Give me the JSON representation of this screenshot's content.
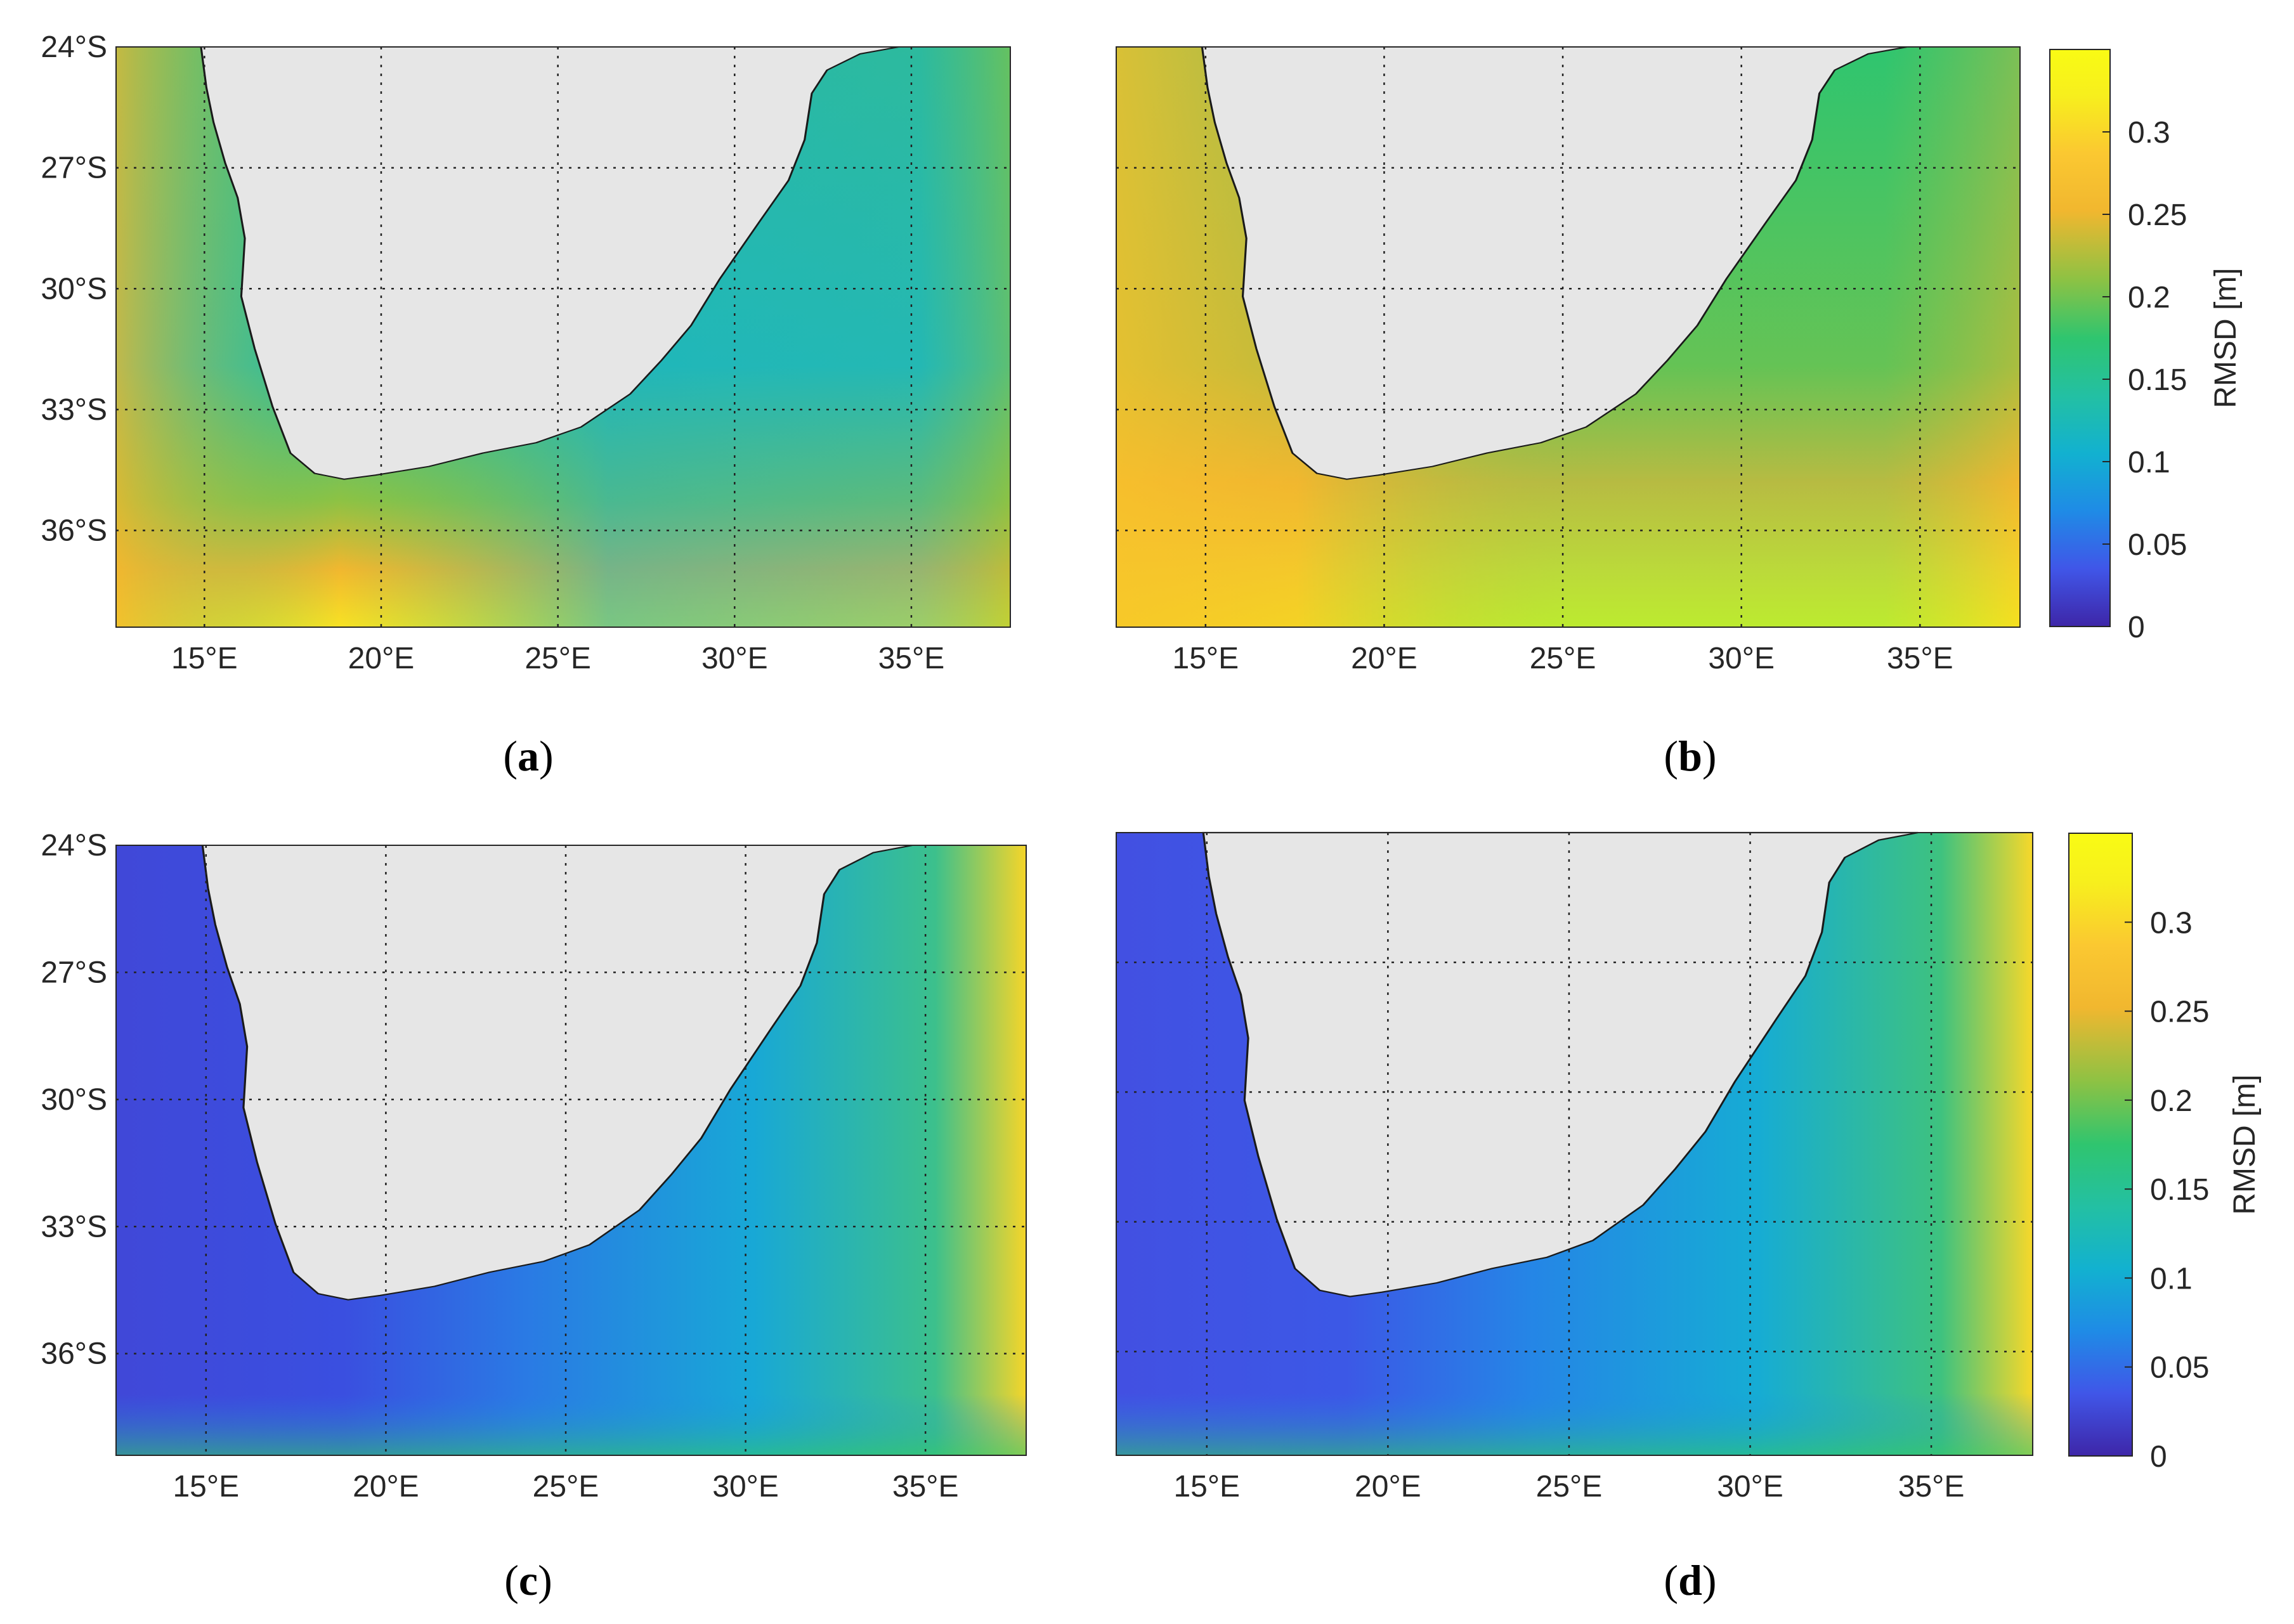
{
  "figure": {
    "panels": [
      {
        "id": "a",
        "caption_open": "(",
        "caption_letter": "a",
        "caption_close": ")",
        "has_colorbar": false,
        "has_lat_labels": true
      },
      {
        "id": "b",
        "caption_open": "(",
        "caption_letter": "b",
        "caption_close": ")",
        "has_colorbar": true,
        "has_lat_labels": false
      },
      {
        "id": "c",
        "caption_open": "(",
        "caption_letter": "c",
        "caption_close": ")",
        "has_colorbar": false,
        "has_lat_labels": true
      },
      {
        "id": "d",
        "caption_open": "(",
        "caption_letter": "d",
        "caption_close": ")",
        "has_colorbar": true,
        "has_lat_labels": false
      }
    ],
    "lat_ticks": [
      {
        "value": -24,
        "label": "24°S"
      },
      {
        "value": -27,
        "label": "27°S"
      },
      {
        "value": -30,
        "label": "30°S"
      },
      {
        "value": -33,
        "label": "33°S"
      },
      {
        "value": -36,
        "label": "36°S"
      }
    ],
    "lon_ticks": [
      {
        "value": 15,
        "label": "15°E"
      },
      {
        "value": 20,
        "label": "20°E"
      },
      {
        "value": 25,
        "label": "25°E"
      },
      {
        "value": 30,
        "label": "30°E"
      },
      {
        "value": 35,
        "label": "35°E"
      }
    ],
    "lon_range": [
      12.5,
      37.8
    ],
    "lat_range": [
      -38.4,
      -24
    ],
    "colorbar": {
      "title": "RMSD [m]",
      "range": [
        0,
        0.35
      ],
      "ticks": [
        {
          "value": 0,
          "label": "0"
        },
        {
          "value": 0.05,
          "label": "0.05"
        },
        {
          "value": 0.1,
          "label": "0.1"
        },
        {
          "value": 0.15,
          "label": "0.15"
        },
        {
          "value": 0.2,
          "label": "0.2"
        },
        {
          "value": 0.25,
          "label": "0.25"
        },
        {
          "value": 0.3,
          "label": "0.3"
        }
      ],
      "colors": [
        "#3e26a8",
        "#4056e8",
        "#1f8be6",
        "#12b1d0",
        "#23c0a3",
        "#2fc56f",
        "#8cc244",
        "#f1b72f",
        "#fbc831",
        "#f7ef1d",
        "#f9fb14"
      ]
    },
    "colors": {
      "land": "#e6e6e6",
      "coast": "#1a1a1a",
      "grid": "#222222",
      "frame": "#262626"
    }
  }
}
